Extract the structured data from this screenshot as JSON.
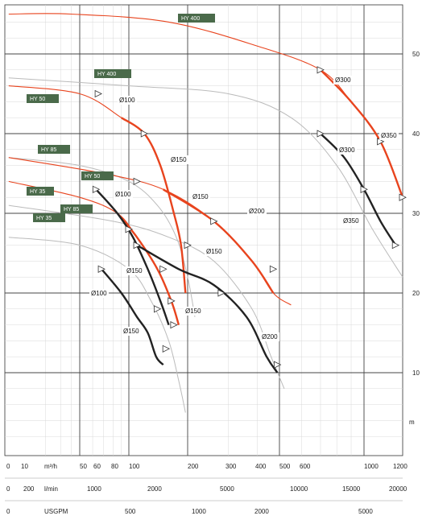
{
  "chart_data": {
    "type": "line",
    "y_unit": "m",
    "y_ticks": [
      "10",
      "20",
      "30",
      "40",
      "50"
    ],
    "axis_rows": [
      {
        "labels": [
          "0",
          "10",
          "m³/h",
          "50",
          "60",
          "80",
          "100",
          "200",
          "300",
          "400",
          "500",
          "600",
          "1000",
          "1200"
        ]
      },
      {
        "labels": [
          "0",
          "200",
          "l/min",
          "1000",
          "2000",
          "5000",
          "10000",
          "15000",
          "20000"
        ]
      },
      {
        "labels": [
          "0",
          "USGPM",
          "500",
          "1000",
          "2000",
          "5000"
        ]
      }
    ],
    "model_tags": [
      "HY 400",
      "HY 400",
      "HY 50",
      "HY 85",
      "HY 50",
      "HY 35",
      "HY 85",
      "HY 35"
    ],
    "impeller_labels": [
      "Ø100",
      "Ø150",
      "Ø300",
      "Ø350",
      "Ø300",
      "Ø350",
      "Ø150",
      "Ø100",
      "Ø200",
      "Ø150",
      "Ø150",
      "Ø150",
      "Ø100",
      "Ø150",
      "Ø200"
    ],
    "series": [
      {
        "name": "HY 400",
        "color": "#e8441e",
        "points": [
          [
            1.5,
            55
          ],
          [
            40,
            55
          ],
          [
            160,
            54
          ],
          [
            400,
            51
          ],
          [
            700,
            48
          ],
          [
            900,
            44
          ],
          [
            1100,
            39
          ],
          [
            1250,
            32
          ]
        ]
      },
      {
        "color": "#bbbbbb",
        "points": [
          [
            1.5,
            47
          ],
          [
            100,
            46
          ],
          [
            300,
            45
          ],
          [
            550,
            42
          ],
          [
            800,
            36
          ],
          [
            1050,
            28
          ],
          [
            1250,
            22
          ]
        ]
      },
      {
        "color": "#222222",
        "points": [
          [
            700,
            40
          ],
          [
            850,
            37
          ],
          [
            1000,
            33
          ],
          [
            1100,
            29
          ],
          [
            1200,
            26
          ]
        ]
      },
      {
        "name": "HY 50",
        "color": "#e8441e",
        "points": [
          [
            1.5,
            46
          ],
          [
            50,
            45
          ],
          [
            90,
            42
          ],
          [
            120,
            40
          ],
          [
            145,
            36
          ],
          [
            170,
            30
          ],
          [
            185,
            26
          ],
          [
            195,
            20
          ]
        ]
      },
      {
        "color": "#bbbbbb",
        "points": [
          [
            1.5,
            37
          ],
          [
            50,
            36
          ],
          [
            100,
            34
          ],
          [
            140,
            31
          ],
          [
            175,
            27
          ],
          [
            200,
            22
          ],
          [
            215,
            17
          ]
        ]
      },
      {
        "name": "HY 85",
        "color": "#e8441e",
        "points": [
          [
            1.5,
            37
          ],
          [
            70,
            35
          ],
          [
            150,
            33
          ],
          [
            260,
            29
          ],
          [
            380,
            24
          ],
          [
            470,
            20
          ],
          [
            550,
            18.5
          ]
        ]
      },
      {
        "color": "#bbbbbb",
        "points": [
          [
            1.5,
            31
          ],
          [
            80,
            29
          ],
          [
            160,
            27
          ],
          [
            260,
            24
          ],
          [
            380,
            18
          ],
          [
            460,
            12
          ],
          [
            520,
            8
          ]
        ]
      },
      {
        "color": "#222222",
        "points": [
          [
            110,
            26
          ],
          [
            180,
            23
          ],
          [
            260,
            21
          ],
          [
            360,
            17
          ],
          [
            440,
            12
          ],
          [
            490,
            10
          ]
        ]
      },
      {
        "name": "HY 35",
        "color": "#e8441e",
        "points": [
          [
            1.5,
            34
          ],
          [
            50,
            32
          ],
          [
            85,
            30
          ],
          [
            110,
            27
          ],
          [
            140,
            23
          ],
          [
            165,
            19
          ],
          [
            180,
            16
          ]
        ]
      },
      {
        "color": "#bbbbbb",
        "points": [
          [
            1.5,
            27
          ],
          [
            50,
            26
          ],
          [
            100,
            23
          ],
          [
            130,
            19
          ],
          [
            160,
            14
          ],
          [
            180,
            9
          ],
          [
            195,
            5
          ]
        ]
      },
      {
        "color": "#222222",
        "points": [
          [
            63,
            33
          ],
          [
            85,
            30
          ],
          [
            105,
            27
          ],
          [
            125,
            23
          ],
          [
            145,
            19
          ],
          [
            160,
            16
          ]
        ]
      },
      {
        "color": "#222222",
        "points": [
          [
            68,
            23
          ],
          [
            90,
            20
          ],
          [
            110,
            17
          ],
          [
            125,
            15
          ],
          [
            138,
            12
          ],
          [
            150,
            11
          ]
        ]
      }
    ]
  }
}
